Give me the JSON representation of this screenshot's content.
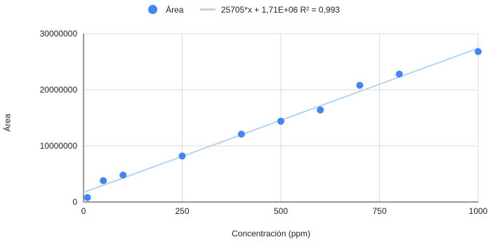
{
  "chart_data": {
    "type": "scatter",
    "title": "",
    "xlabel": "Concentración  (ppm)",
    "ylabel": "Área",
    "xlim": [
      0,
      1000
    ],
    "ylim": [
      0,
      30000000
    ],
    "x_ticks": [
      "0",
      "250",
      "500",
      "750",
      "1000"
    ],
    "y_ticks": [
      "0",
      "10000000",
      "20000000",
      "30000000"
    ],
    "grid": true,
    "legend_position": "top",
    "series": [
      {
        "name": "Área",
        "type": "scatter",
        "color": "#4285f4",
        "x": [
          10,
          50,
          100,
          250,
          400,
          500,
          600,
          700,
          800,
          1000
        ],
        "y": [
          800000,
          3800000,
          4800000,
          8200000,
          12100000,
          14400000,
          16400000,
          20800000,
          22800000,
          26800000
        ]
      },
      {
        "name": "25705*x + 1,71E+06 R² = 0,993",
        "type": "trendline",
        "color": "#b4d3f5",
        "slope": 25705,
        "intercept": 1710000
      }
    ]
  }
}
